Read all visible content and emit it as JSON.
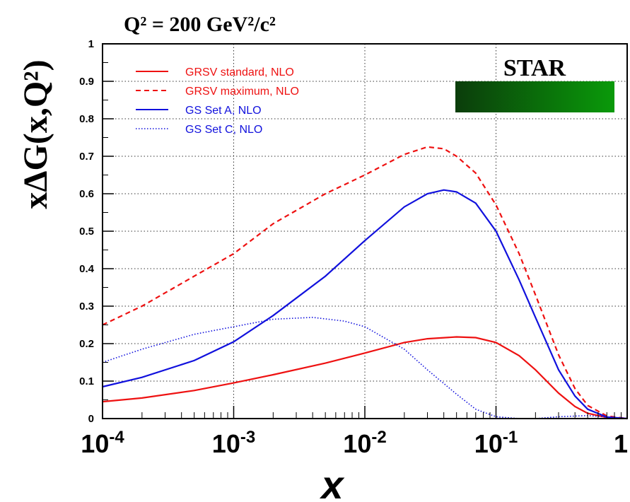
{
  "chart_data": {
    "type": "line",
    "title": "Q² = 200 GeV²/c²",
    "ylabel": "xΔG(x,Q²)",
    "xlabel": "x",
    "x_scale": "log",
    "xlim": [
      0.0001,
      1
    ],
    "ylim": [
      0,
      1
    ],
    "grid": true,
    "legend_placement": "top-left",
    "watermark": {
      "text": "STAR",
      "colors": [
        "#0b3d0b",
        "#0a9a0a"
      ]
    },
    "x_ticks": [
      {
        "value": 0.0001,
        "base": "10",
        "exp": "-4"
      },
      {
        "value": 0.001,
        "base": "10",
        "exp": "-3"
      },
      {
        "value": 0.01,
        "base": "10",
        "exp": "-2"
      },
      {
        "value": 0.1,
        "base": "10",
        "exp": "-1"
      },
      {
        "value": 1,
        "base": "1",
        "exp": ""
      }
    ],
    "y_ticks": [
      {
        "value": 0,
        "label": "0"
      },
      {
        "value": 0.1,
        "label": "0.1"
      },
      {
        "value": 0.2,
        "label": "0.2"
      },
      {
        "value": 0.3,
        "label": "0.3"
      },
      {
        "value": 0.4,
        "label": "0.4"
      },
      {
        "value": 0.5,
        "label": "0.5"
      },
      {
        "value": 0.6,
        "label": "0.6"
      },
      {
        "value": 0.7,
        "label": "0.7"
      },
      {
        "value": 0.8,
        "label": "0.8"
      },
      {
        "value": 0.9,
        "label": "0.9"
      },
      {
        "value": 1,
        "label": "1"
      }
    ],
    "series": [
      {
        "name": "GRSV standard, NLO",
        "color": "#ee1111",
        "style": "solid",
        "x": [
          0.0001,
          0.0002,
          0.0005,
          0.001,
          0.002,
          0.005,
          0.01,
          0.02,
          0.03,
          0.05,
          0.07,
          0.1,
          0.15,
          0.2,
          0.3,
          0.4,
          0.5,
          0.7,
          1.0
        ],
        "y": [
          0.045,
          0.055,
          0.075,
          0.095,
          0.117,
          0.148,
          0.175,
          0.203,
          0.213,
          0.218,
          0.216,
          0.203,
          0.168,
          0.13,
          0.068,
          0.032,
          0.014,
          0.003,
          0.0
        ]
      },
      {
        "name": "GRSV maximum, NLO",
        "color": "#ee1111",
        "style": "dashed",
        "x": [
          0.0001,
          0.0002,
          0.0005,
          0.001,
          0.002,
          0.005,
          0.01,
          0.02,
          0.03,
          0.04,
          0.05,
          0.07,
          0.1,
          0.15,
          0.2,
          0.3,
          0.4,
          0.5,
          0.7,
          1.0
        ],
        "y": [
          0.25,
          0.3,
          0.38,
          0.44,
          0.52,
          0.6,
          0.65,
          0.705,
          0.725,
          0.72,
          0.7,
          0.655,
          0.57,
          0.44,
          0.33,
          0.17,
          0.08,
          0.035,
          0.007,
          0.0
        ]
      },
      {
        "name": "GS Set A, NLO",
        "color": "#1111dd",
        "style": "solid",
        "x": [
          0.0001,
          0.0002,
          0.0005,
          0.001,
          0.002,
          0.005,
          0.01,
          0.02,
          0.03,
          0.04,
          0.05,
          0.07,
          0.1,
          0.15,
          0.2,
          0.3,
          0.4,
          0.5,
          0.7,
          1.0
        ],
        "y": [
          0.085,
          0.11,
          0.155,
          0.205,
          0.275,
          0.38,
          0.475,
          0.565,
          0.6,
          0.61,
          0.605,
          0.575,
          0.5,
          0.37,
          0.27,
          0.13,
          0.06,
          0.025,
          0.004,
          0.0
        ]
      },
      {
        "name": "GS Set C, NLO",
        "color": "#1111dd",
        "style": "dotted",
        "x": [
          0.0001,
          0.0002,
          0.0005,
          0.001,
          0.002,
          0.004,
          0.007,
          0.01,
          0.02,
          0.03,
          0.05,
          0.07,
          0.1,
          0.15,
          0.2,
          0.3,
          0.5,
          0.7,
          1.0
        ],
        "y": [
          0.15,
          0.185,
          0.225,
          0.245,
          0.265,
          0.27,
          0.26,
          0.245,
          0.185,
          0.13,
          0.065,
          0.025,
          0.005,
          0.0,
          0.0,
          0.005,
          0.008,
          0.004,
          0.0
        ]
      }
    ]
  }
}
